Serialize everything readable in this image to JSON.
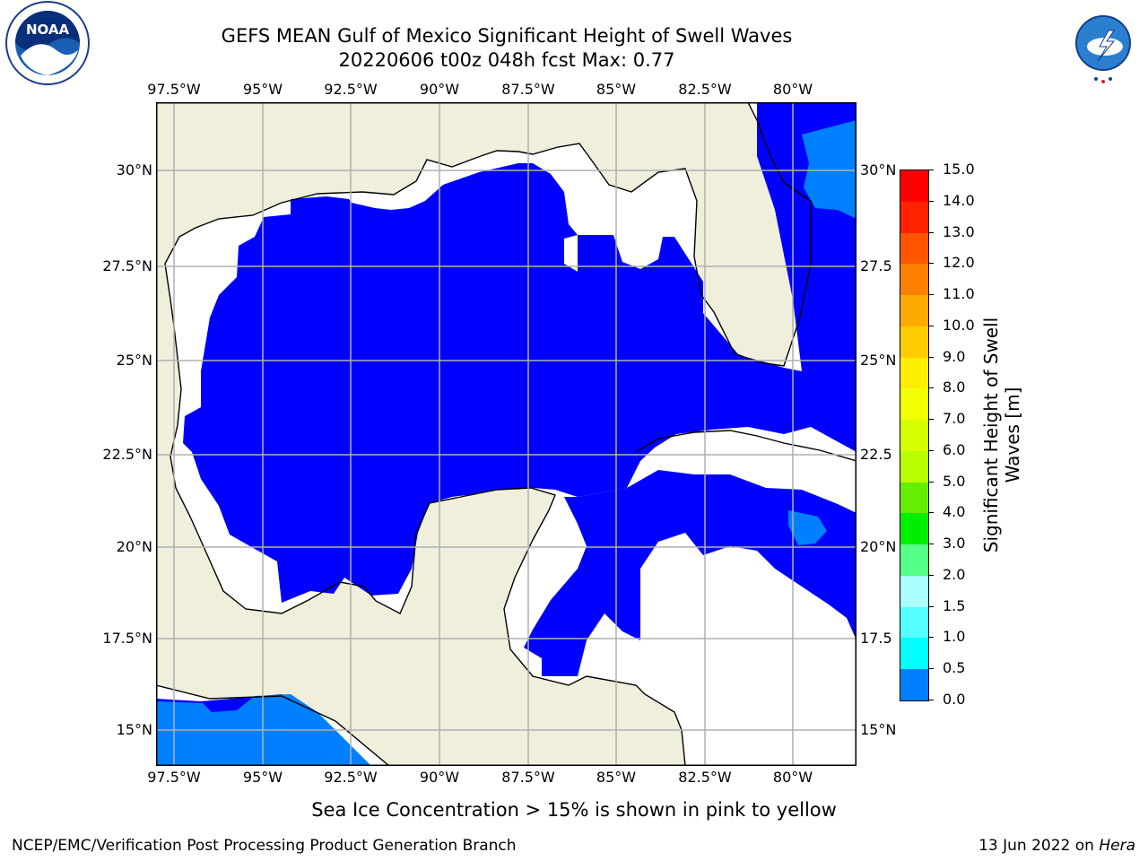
{
  "header": {
    "title_line1": "GEFS MEAN Gulf of Mexico Significant Height of Swell Waves",
    "title_line2": "20220606 t00z 048h fcst   Max: 0.77"
  },
  "logos": {
    "left_text": "NOAA",
    "left_ring_text": "NATIONAL OCEANIC AND ATMOSPHERIC ADMINISTRATION · U.S. DEPARTMENT OF COMMERCE",
    "right_ring_text": "NATIONAL WEATHER SERVICE"
  },
  "map": {
    "lon_labels": [
      "97.5°W",
      "95°W",
      "92.5°W",
      "90°W",
      "87.5°W",
      "85°W",
      "82.5°W",
      "80°W"
    ],
    "lat_labels_left": [
      "30°N",
      "27.5°N",
      "25°N",
      "22.5°N",
      "20°N",
      "17.5°N",
      "15°N"
    ],
    "lat_labels_right": [
      "30°N",
      "27.5",
      "25°N",
      "22.5",
      "20°N",
      "17.5",
      "15°N"
    ],
    "colors": {
      "land": "#efefdc",
      "ocean_no_data": "#ffffff",
      "bin_0_0_5": "#0000ff",
      "bin_0_5_1_0": "#0080ff",
      "grid": "#b0b0b0",
      "coast": "#000000"
    }
  },
  "colorbar": {
    "label_line1": "Significant Height of Swell",
    "label_line2": "Waves [m]",
    "ticks": [
      "15.0",
      "14.0",
      "13.0",
      "12.0",
      "11.0",
      "10.0",
      "9.0",
      "8.0",
      "7.0",
      "6.0",
      "5.0",
      "4.0",
      "3.0",
      "2.0",
      "1.5",
      "1.0",
      "0.5",
      "0.0"
    ],
    "colors": [
      "#ff0000",
      "#ff2200",
      "#ff5500",
      "#ff8000",
      "#ffaa00",
      "#ffcc00",
      "#ffee00",
      "#f2ff00",
      "#d8ff00",
      "#b8ff00",
      "#66ee00",
      "#00ee00",
      "#55ff88",
      "#aaffff",
      "#55ffff",
      "#00ffff",
      "#0080ff",
      "#0000ff"
    ]
  },
  "note": "Sea Ice Concentration > 15% is shown in pink to yellow",
  "footer": {
    "left": "NCEP/EMC/Verification Post Processing Product Generation Branch",
    "right_prefix": "13 Jun 2022 on ",
    "right_host": "Hera"
  }
}
